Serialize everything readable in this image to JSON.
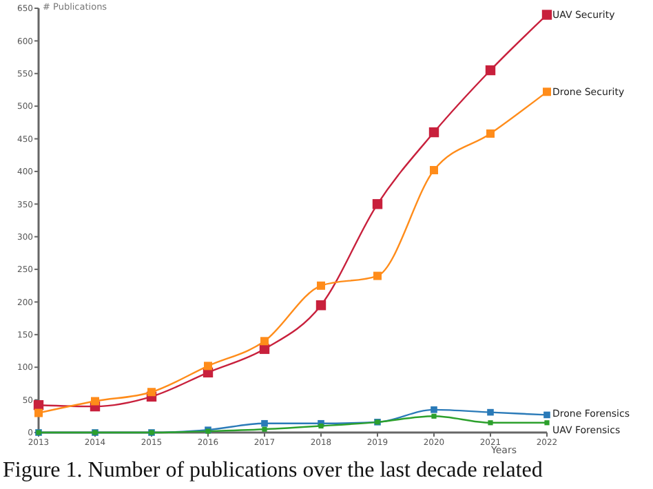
{
  "chart_data": {
    "type": "line",
    "xlabel": "Years",
    "ylabel": "# Publications",
    "annotations": [
      "Figure 1. Number of publications over the last decade related"
    ],
    "x": [
      2013,
      2014,
      2015,
      2016,
      2017,
      2018,
      2019,
      2020,
      2021,
      2022
    ],
    "xlim": [
      2013,
      2022
    ],
    "xticks": [
      2013,
      2014,
      2015,
      2016,
      2017,
      2018,
      2019,
      2020,
      2021,
      2022
    ],
    "ylim": [
      0,
      650
    ],
    "yticks": [
      0,
      50,
      100,
      150,
      200,
      250,
      300,
      350,
      400,
      450,
      500,
      550,
      600,
      650
    ],
    "grid": false,
    "legend": false,
    "marker": "square",
    "line_style": "solid",
    "series": [
      {
        "name": "UAV Security",
        "color": "#c8203c",
        "values": [
          42,
          40,
          55,
          92,
          128,
          195,
          350,
          460,
          555,
          640
        ]
      },
      {
        "name": "Drone Security",
        "color": "#ff8c1a",
        "values": [
          30,
          48,
          62,
          102,
          140,
          225,
          240,
          402,
          458,
          522
        ]
      },
      {
        "name": "Drone Forensics",
        "color": "#2a7ab8",
        "values": [
          0,
          0,
          0,
          4,
          14,
          14,
          16,
          35,
          31,
          27
        ]
      },
      {
        "name": "UAV Forensics",
        "color": "#2ca02c",
        "values": [
          0,
          0,
          0,
          2,
          5,
          10,
          16,
          25,
          15,
          15
        ]
      }
    ]
  }
}
